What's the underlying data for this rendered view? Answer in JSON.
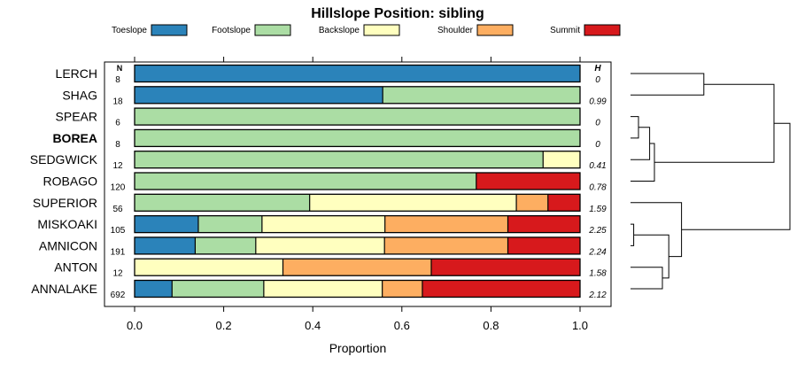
{
  "chart_data": {
    "type": "bar",
    "orientation": "horizontal-stacked",
    "title": "Hillslope Position: sibling",
    "xlabel": "Proportion",
    "ylabel": "",
    "xlim": [
      0,
      1
    ],
    "x_ticks": [
      "0.0",
      "0.2",
      "0.4",
      "0.6",
      "0.8",
      "1.0"
    ],
    "x_tick_values": [
      0,
      0.2,
      0.4,
      0.6,
      0.8,
      1.0
    ],
    "n_header": "N",
    "h_header": "H",
    "legend_position": "top",
    "legend": [
      {
        "name": "Toeslope",
        "color": "#2b83ba"
      },
      {
        "name": "Footslope",
        "color": "#abdda4"
      },
      {
        "name": "Backslope",
        "color": "#ffffbf"
      },
      {
        "name": "Shoulder",
        "color": "#fdae61"
      },
      {
        "name": "Summit",
        "color": "#d7191c"
      }
    ],
    "categories": [
      "LERCH",
      "SHAG",
      "SPEAR",
      "BOREA",
      "SEDGWICK",
      "ROBAGO",
      "SUPERIOR",
      "MISKOAKI",
      "AMNICON",
      "ANTON",
      "ANNALAKE"
    ],
    "highlight": "BOREA",
    "n": [
      "8",
      "18",
      "6",
      "8",
      "12",
      "120",
      "56",
      "105",
      "191",
      "12",
      "692"
    ],
    "h": [
      "0",
      "0.99",
      "0",
      "0",
      "0.41",
      "0.78",
      "1.59",
      "2.25",
      "2.24",
      "1.58",
      "2.12"
    ],
    "series": [
      {
        "name": "Toeslope",
        "values": [
          1.0,
          0.557,
          0,
          0,
          0,
          0,
          0,
          0.143,
          0.136,
          0,
          0.084
        ]
      },
      {
        "name": "Footslope",
        "values": [
          0,
          0.443,
          1.0,
          1.0,
          0.917,
          0.767,
          0.393,
          0.143,
          0.136,
          0,
          0.206
        ]
      },
      {
        "name": "Backslope",
        "values": [
          0,
          0,
          0,
          0,
          0.083,
          0,
          0.464,
          0.276,
          0.289,
          0.333,
          0.266
        ]
      },
      {
        "name": "Shoulder",
        "values": [
          0,
          0,
          0,
          0,
          0,
          0,
          0.071,
          0.276,
          0.277,
          0.333,
          0.09
        ]
      },
      {
        "name": "Summit",
        "values": [
          0,
          0,
          0,
          0,
          0,
          0.233,
          0.072,
          0.162,
          0.162,
          0.334,
          0.354
        ]
      }
    ],
    "dendrogram": {
      "leaf_order": [
        "LERCH",
        "SHAG",
        "SPEAR",
        "BOREA",
        "SEDGWICK",
        "ROBAGO",
        "SUPERIOR",
        "MISKOAKI",
        "AMNICON",
        "ANTON",
        "ANNALAKE"
      ],
      "merges": [
        {
          "left": "MISKOAKI",
          "right": "AMNICON",
          "height": 0.02
        },
        {
          "left": "SPEAR",
          "right": "BOREA",
          "height": 0.05
        },
        {
          "left": "ANTON",
          "right": "ANNALAKE",
          "height": 0.2
        },
        {
          "left": "[SPEAR,BOREA]",
          "right": "SEDGWICK",
          "height": 0.12
        },
        {
          "left": "[MISKOAKI,AMNICON]",
          "right": "[ANTON,ANNALAKE]",
          "height": 0.24
        },
        {
          "left": "[SPEAR,BOREA,SEDGWICK]",
          "right": "ROBAGO",
          "height": 0.15
        },
        {
          "left": "SUPERIOR",
          "right": "[MISKOAKI,AMNICON,ANTON,ANNALAKE]",
          "height": 0.32
        },
        {
          "left": "LERCH",
          "right": "SHAG",
          "height": 0.46
        },
        {
          "left": "[LERCH,SHAG]",
          "right": "[SPEAR,BOREA,SEDGWICK,ROBAGO]",
          "height": 0.9
        },
        {
          "left": "[LERCH..ROBAGO]",
          "right": "[SUPERIOR..ANNALAKE]",
          "height": 1.0
        }
      ]
    }
  }
}
